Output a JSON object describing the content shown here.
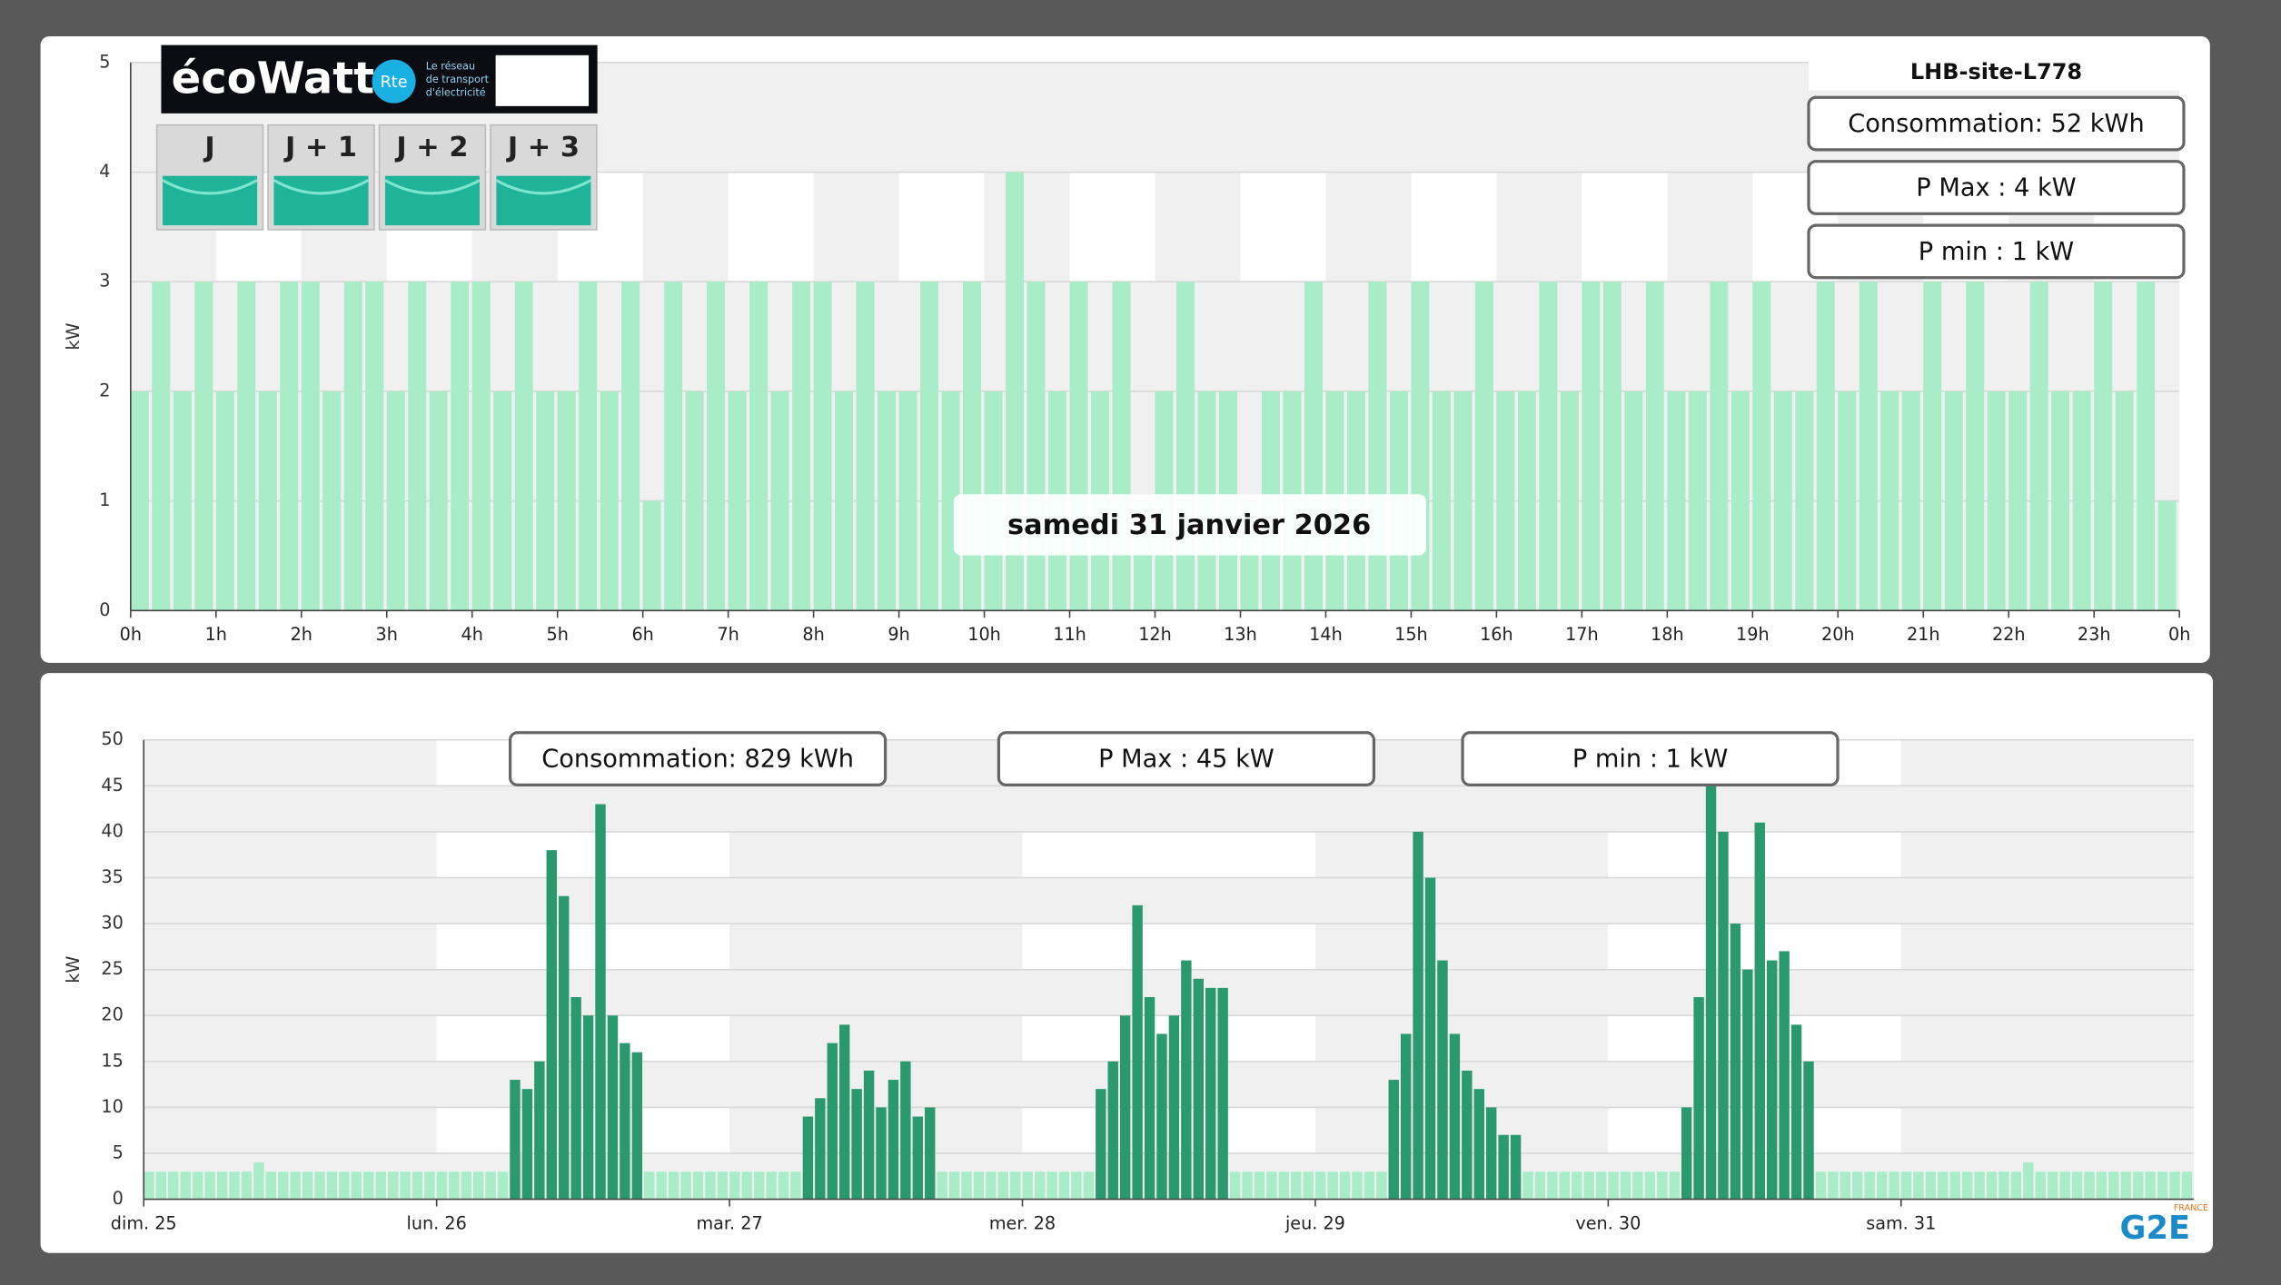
{
  "header": {
    "logo_parts": [
      "éco",
      "Watt"
    ],
    "rte": "Rte",
    "rte_lines": [
      "Le réseau",
      "de transport",
      "d'électricité"
    ],
    "days": [
      "J",
      "J + 1",
      "J + 2",
      "J + 3"
    ]
  },
  "brand": {
    "name": "G2E",
    "country": "FRANCE"
  },
  "chart_data": [
    {
      "type": "bar",
      "title": "LHB-site-L778",
      "subtitle": "samedi 31 janvier 2026",
      "y_label": "kW",
      "color": "#a8ecc8",
      "annotations": [
        "Consommation: 52 kWh",
        "P Max :  4 kW",
        "P min : 1 kW"
      ],
      "xlim": [
        0,
        24
      ],
      "xticks": [
        {
          "value": 0,
          "label": "0h"
        },
        {
          "value": 1,
          "label": "1h"
        },
        {
          "value": 2,
          "label": "2h"
        },
        {
          "value": 3,
          "label": "3h"
        },
        {
          "value": 4,
          "label": "4h"
        },
        {
          "value": 5,
          "label": "5h"
        },
        {
          "value": 6,
          "label": "6h"
        },
        {
          "value": 7,
          "label": "7h"
        },
        {
          "value": 8,
          "label": "8h"
        },
        {
          "value": 9,
          "label": "9h"
        },
        {
          "value": 10,
          "label": "10h"
        },
        {
          "value": 11,
          "label": "11h"
        },
        {
          "value": 12,
          "label": "12h"
        },
        {
          "value": 13,
          "label": "13h"
        },
        {
          "value": 14,
          "label": "14h"
        },
        {
          "value": 15,
          "label": "15h"
        },
        {
          "value": 16,
          "label": "16h"
        },
        {
          "value": 17,
          "label": "17h"
        },
        {
          "value": 18,
          "label": "18h"
        },
        {
          "value": 19,
          "label": "19h"
        },
        {
          "value": 20,
          "label": "20h"
        },
        {
          "value": 21,
          "label": "21h"
        },
        {
          "value": 22,
          "label": "22h"
        },
        {
          "value": 23,
          "label": "23h"
        },
        {
          "value": 24,
          "label": "0h"
        }
      ],
      "ylim": [
        0,
        5
      ],
      "yticks": [
        0,
        1,
        2,
        3,
        4,
        5
      ],
      "grid": true,
      "values": [
        2,
        3,
        2,
        3,
        2,
        3,
        2,
        3,
        3,
        2,
        3,
        3,
        2,
        3,
        2,
        3,
        3,
        2,
        3,
        2,
        2,
        3,
        2,
        3,
        1,
        3,
        2,
        3,
        2,
        3,
        2,
        3,
        3,
        2,
        3,
        2,
        2,
        3,
        2,
        3,
        2,
        4,
        3,
        2,
        3,
        2,
        3,
        1,
        2,
        3,
        2,
        2,
        1,
        2,
        2,
        3,
        2,
        2,
        3,
        2,
        3,
        2,
        2,
        3,
        2,
        2,
        3,
        2,
        3,
        3,
        2,
        3,
        2,
        2,
        3,
        2,
        3,
        2,
        2,
        3,
        2,
        3,
        2,
        2,
        3,
        2,
        3,
        2,
        2,
        3,
        2,
        2,
        3,
        2,
        3,
        1
      ]
    },
    {
      "type": "bar",
      "y_label": "kW",
      "annotations": [
        "Consommation: 829 kWh",
        "P Max :  45 kW",
        "P min : 1 kW"
      ],
      "xlim": [
        0,
        168
      ],
      "xticks": [
        {
          "value": 0,
          "label": "dim. 25"
        },
        {
          "value": 24,
          "label": "lun. 26"
        },
        {
          "value": 48,
          "label": "mar. 27"
        },
        {
          "value": 72,
          "label": "mer. 28"
        },
        {
          "value": 96,
          "label": "jeu. 29"
        },
        {
          "value": 120,
          "label": "ven. 30"
        },
        {
          "value": 144,
          "label": "sam. 31"
        }
      ],
      "ylim": [
        0,
        50
      ],
      "yticks": [
        0,
        5,
        10,
        15,
        20,
        25,
        30,
        35,
        40,
        45,
        50
      ],
      "grid": true,
      "series": [
        {
          "color": "#a8ecc8",
          "values": [
            3,
            3,
            3,
            3,
            3,
            3,
            3,
            3,
            3,
            4,
            3,
            3,
            3,
            3,
            3,
            3,
            3,
            3,
            3,
            3,
            3,
            3,
            3,
            3,
            3,
            3,
            3,
            3,
            3,
            3,
            null,
            null,
            null,
            null,
            null,
            null,
            null,
            null,
            null,
            null,
            null,
            3,
            3,
            3,
            3,
            3,
            3,
            3,
            3,
            3,
            3,
            3,
            3,
            3,
            null,
            null,
            null,
            null,
            null,
            null,
            null,
            null,
            null,
            null,
            null,
            3,
            3,
            3,
            3,
            3,
            3,
            3,
            3,
            3,
            3,
            3,
            3,
            3,
            null,
            null,
            null,
            null,
            null,
            null,
            null,
            null,
            null,
            null,
            null,
            3,
            3,
            3,
            3,
            3,
            3,
            3,
            3,
            3,
            3,
            3,
            3,
            3,
            null,
            null,
            null,
            null,
            null,
            null,
            null,
            null,
            null,
            null,
            null,
            3,
            3,
            3,
            3,
            3,
            3,
            3,
            3,
            3,
            3,
            3,
            3,
            3,
            null,
            null,
            null,
            null,
            null,
            null,
            null,
            null,
            null,
            null,
            null,
            3,
            3,
            3,
            3,
            3,
            3,
            3,
            3,
            3,
            3,
            3,
            3,
            3,
            3,
            3,
            3,
            3,
            4,
            3,
            3,
            3,
            3,
            3,
            3,
            3,
            3,
            3,
            3,
            3,
            3,
            3
          ]
        },
        {
          "color": "#2a9a6e",
          "values": [
            null,
            null,
            null,
            null,
            null,
            null,
            null,
            null,
            null,
            null,
            null,
            null,
            null,
            null,
            null,
            null,
            null,
            null,
            null,
            null,
            null,
            null,
            null,
            null,
            null,
            null,
            null,
            null,
            null,
            null,
            13,
            12,
            15,
            38,
            33,
            22,
            20,
            43,
            20,
            17,
            16,
            null,
            null,
            null,
            null,
            null,
            null,
            null,
            null,
            null,
            null,
            null,
            null,
            null,
            9,
            11,
            17,
            19,
            12,
            14,
            10,
            13,
            15,
            9,
            10,
            null,
            null,
            null,
            null,
            null,
            null,
            null,
            null,
            null,
            null,
            null,
            null,
            null,
            12,
            15,
            20,
            32,
            22,
            18,
            20,
            26,
            24,
            23,
            23,
            null,
            null,
            null,
            null,
            null,
            null,
            null,
            null,
            null,
            null,
            null,
            null,
            null,
            13,
            18,
            40,
            35,
            26,
            18,
            14,
            12,
            10,
            7,
            7,
            null,
            null,
            null,
            null,
            null,
            null,
            null,
            null,
            null,
            null,
            null,
            null,
            null,
            10,
            22,
            45,
            40,
            30,
            25,
            41,
            26,
            27,
            19,
            15,
            null,
            null,
            null,
            null,
            null,
            null,
            null,
            null,
            null,
            null,
            null,
            null,
            null,
            null,
            null,
            null,
            null,
            null,
            null,
            null,
            null,
            null,
            null,
            null,
            null,
            null,
            null,
            null,
            null,
            null,
            null
          ]
        }
      ]
    }
  ]
}
